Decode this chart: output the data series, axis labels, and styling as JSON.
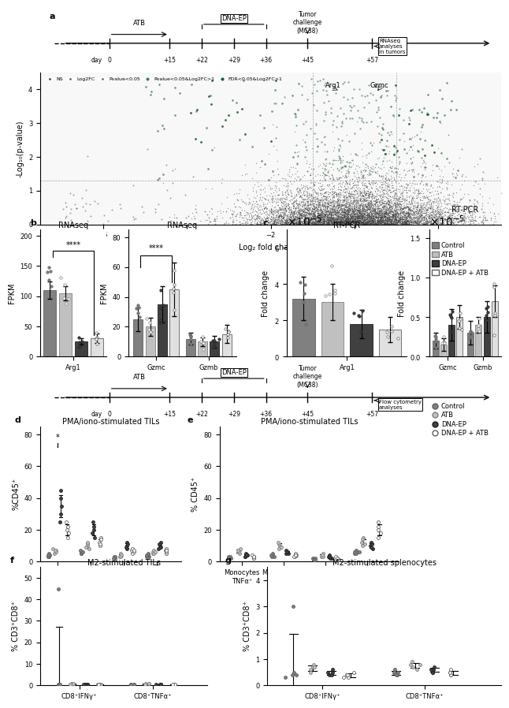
{
  "timeline1": {
    "days": [
      "0",
      "+15",
      "+22",
      "+29",
      "+36",
      "+45",
      "+57"
    ],
    "atb_label": "ATB",
    "dna_ep_label": "DNA-EP",
    "tumor_label": "Tumor\nchallenge\n(MC38)",
    "rnaseq_label": "RNAseq\nanalyses\nin tumors"
  },
  "timeline2": {
    "days": [
      "0",
      "+15",
      "+22",
      "+29",
      "+36",
      "+45",
      "+57"
    ],
    "flow_label": "Flow cytometry\nanalyses"
  },
  "legend_entries": [
    "Control",
    "ATB",
    "DNA-EP",
    "DNA-EP + ATB"
  ],
  "legend_colors": [
    "#808080",
    "#ffffff",
    "#000000",
    "#ffffff"
  ],
  "legend_markers": [
    "s",
    "s",
    "s",
    "s"
  ],
  "legend_edgecolors": [
    "#808080",
    "#808080",
    "#000000",
    "#000000"
  ],
  "panel_b_title1": "RNAseq",
  "panel_b_title2": "RNAseq",
  "panel_c_title1": "RT-PCR",
  "panel_c_title2": "RT-PCR",
  "panel_d_title": "PMA/iono-stimulated TILs",
  "panel_e_title": "PMA/iono-stimulated TILs",
  "panel_f_title": "M2-stimulated TILs",
  "panel_g_title": "M2-stimulated splenocytes",
  "colors": {
    "control": "#808080",
    "atb_fill": "#d0d0d0",
    "atb_edge": "#808080",
    "dnaep": "#404040",
    "dnaep_atb_fill": "#ffffff",
    "dnaep_atb_edge": "#404040"
  },
  "volcano": {
    "xlabel": "Log2 fold change",
    "ylabel": "-Log10(p-value)",
    "xlim": [
      -7.5,
      3.5
    ],
    "ylim": [
      0,
      4.5
    ],
    "legend_items": [
      "NS",
      "Log2FC",
      "Pvalue<0.05",
      "Pvalue<0.05&Log2FC>1",
      "FDR<0.05&Log2FC>1"
    ]
  }
}
